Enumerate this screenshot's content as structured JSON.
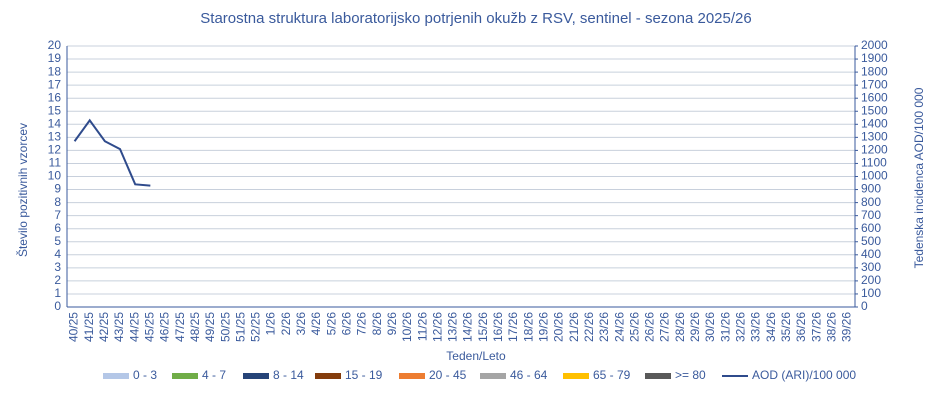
{
  "chart_data": {
    "type": "bar",
    "stacked": true,
    "title": "Starostna struktura  laboratorijsko potrjenih  okužb z RSV, sentinel  - sezona 2025/26",
    "xlabel": "Teden/Leto",
    "ylabel": "Število  pozitivnih  vzorcev",
    "y2label": "Tedenska incidenca AOD/100 000",
    "categories": [
      "40/25",
      "41/25",
      "42/25",
      "43/25",
      "44/25",
      "45/25",
      "46/25",
      "47/25",
      "48/25",
      "49/25",
      "50/25",
      "51/25",
      "52/25",
      "1/26",
      "2/26",
      "3/26",
      "4/26",
      "5/26",
      "6/26",
      "7/26",
      "8/26",
      "9/26",
      "10/26",
      "11/26",
      "12/26",
      "13/26",
      "14/26",
      "15/26",
      "16/26",
      "17/26",
      "18/26",
      "19/26",
      "20/26",
      "21/26",
      "22/26",
      "23/26",
      "24/26",
      "25/26",
      "26/26",
      "27/26",
      "28/26",
      "29/26",
      "30/26",
      "31/26",
      "32/26",
      "33/26",
      "34/26",
      "35/26",
      "36/26",
      "37/26",
      "38/26",
      "39/26"
    ],
    "series": [
      {
        "name": "0 - 3",
        "color": "#b4c7e7",
        "values": [
          0,
          0,
          0,
          0,
          0,
          0,
          null,
          null,
          null,
          null,
          null,
          null,
          null,
          null,
          null,
          null,
          null,
          null,
          null,
          null,
          null,
          null,
          null,
          null,
          null,
          null,
          null,
          null,
          null,
          null,
          null,
          null,
          null,
          null,
          null,
          null,
          null,
          null,
          null,
          null,
          null,
          null,
          null,
          null,
          null,
          null,
          null,
          null,
          null,
          null,
          null,
          null
        ]
      },
      {
        "name": "4 - 7",
        "color": "#70ad47",
        "values": [
          0,
          0,
          0,
          0,
          0,
          0,
          null,
          null,
          null,
          null,
          null,
          null,
          null,
          null,
          null,
          null,
          null,
          null,
          null,
          null,
          null,
          null,
          null,
          null,
          null,
          null,
          null,
          null,
          null,
          null,
          null,
          null,
          null,
          null,
          null,
          null,
          null,
          null,
          null,
          null,
          null,
          null,
          null,
          null,
          null,
          null,
          null,
          null,
          null,
          null,
          null,
          null
        ]
      },
      {
        "name": "8 - 14",
        "color": "#264478",
        "values": [
          0,
          0,
          0,
          0,
          0,
          0,
          null,
          null,
          null,
          null,
          null,
          null,
          null,
          null,
          null,
          null,
          null,
          null,
          null,
          null,
          null,
          null,
          null,
          null,
          null,
          null,
          null,
          null,
          null,
          null,
          null,
          null,
          null,
          null,
          null,
          null,
          null,
          null,
          null,
          null,
          null,
          null,
          null,
          null,
          null,
          null,
          null,
          null,
          null,
          null,
          null,
          null
        ]
      },
      {
        "name": "15 - 19",
        "color": "#843c0c",
        "values": [
          0,
          0,
          0,
          0,
          0,
          0,
          null,
          null,
          null,
          null,
          null,
          null,
          null,
          null,
          null,
          null,
          null,
          null,
          null,
          null,
          null,
          null,
          null,
          null,
          null,
          null,
          null,
          null,
          null,
          null,
          null,
          null,
          null,
          null,
          null,
          null,
          null,
          null,
          null,
          null,
          null,
          null,
          null,
          null,
          null,
          null,
          null,
          null,
          null,
          null,
          null,
          null
        ]
      },
      {
        "name": "20 - 45",
        "color": "#ed7d31",
        "values": [
          0,
          0,
          0,
          0,
          0,
          0,
          null,
          null,
          null,
          null,
          null,
          null,
          null,
          null,
          null,
          null,
          null,
          null,
          null,
          null,
          null,
          null,
          null,
          null,
          null,
          null,
          null,
          null,
          null,
          null,
          null,
          null,
          null,
          null,
          null,
          null,
          null,
          null,
          null,
          null,
          null,
          null,
          null,
          null,
          null,
          null,
          null,
          null,
          null,
          null,
          null,
          null
        ]
      },
      {
        "name": "46 - 64",
        "color": "#a5a5a5",
        "values": [
          0,
          0,
          0,
          0,
          0,
          0,
          null,
          null,
          null,
          null,
          null,
          null,
          null,
          null,
          null,
          null,
          null,
          null,
          null,
          null,
          null,
          null,
          null,
          null,
          null,
          null,
          null,
          null,
          null,
          null,
          null,
          null,
          null,
          null,
          null,
          null,
          null,
          null,
          null,
          null,
          null,
          null,
          null,
          null,
          null,
          null,
          null,
          null,
          null,
          null,
          null,
          null
        ]
      },
      {
        "name": "65 - 79",
        "color": "#ffc000",
        "values": [
          0,
          0,
          0,
          0,
          0,
          0,
          null,
          null,
          null,
          null,
          null,
          null,
          null,
          null,
          null,
          null,
          null,
          null,
          null,
          null,
          null,
          null,
          null,
          null,
          null,
          null,
          null,
          null,
          null,
          null,
          null,
          null,
          null,
          null,
          null,
          null,
          null,
          null,
          null,
          null,
          null,
          null,
          null,
          null,
          null,
          null,
          null,
          null,
          null,
          null,
          null,
          null
        ]
      },
      {
        "name": ">= 80",
        "color": "#595959",
        "values": [
          0,
          0,
          0,
          0,
          0,
          0,
          null,
          null,
          null,
          null,
          null,
          null,
          null,
          null,
          null,
          null,
          null,
          null,
          null,
          null,
          null,
          null,
          null,
          null,
          null,
          null,
          null,
          null,
          null,
          null,
          null,
          null,
          null,
          null,
          null,
          null,
          null,
          null,
          null,
          null,
          null,
          null,
          null,
          null,
          null,
          null,
          null,
          null,
          null,
          null,
          null,
          null
        ]
      },
      {
        "name": "AOD (ARI)/100 000",
        "color": "#2f4b8c",
        "type": "line",
        "axis": "y2",
        "values": [
          1270,
          1430,
          1270,
          1210,
          940,
          930,
          null,
          null,
          null,
          null,
          null,
          null,
          null,
          null,
          null,
          null,
          null,
          null,
          null,
          null,
          null,
          null,
          null,
          null,
          null,
          null,
          null,
          null,
          null,
          null,
          null,
          null,
          null,
          null,
          null,
          null,
          null,
          null,
          null,
          null,
          null,
          null,
          null,
          null,
          null,
          null,
          null,
          null,
          null,
          null,
          null,
          null
        ]
      }
    ],
    "ylim": [
      0,
      20
    ],
    "yticks": [
      0,
      1,
      2,
      3,
      4,
      5,
      6,
      7,
      8,
      9,
      10,
      11,
      12,
      13,
      14,
      15,
      16,
      17,
      18,
      19,
      20
    ],
    "y2lim": [
      0,
      2000
    ],
    "y2ticks": [
      0,
      100,
      200,
      300,
      400,
      500,
      600,
      700,
      800,
      900,
      1000,
      1100,
      1200,
      1300,
      1400,
      1500,
      1600,
      1700,
      1800,
      1900,
      2000
    ],
    "grid": true,
    "legend": "bottom"
  }
}
